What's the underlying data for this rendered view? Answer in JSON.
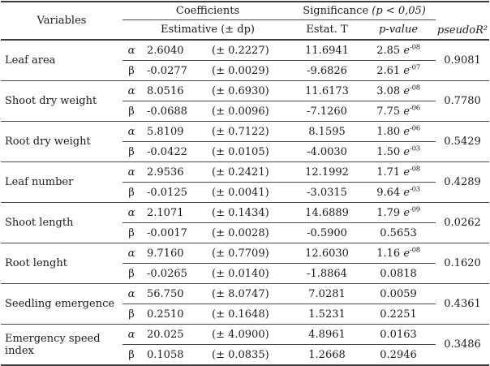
{
  "table": {
    "header": {
      "variables": "Variables",
      "coefficients": "Coefficients",
      "estimative": "Estimative (± dp)",
      "significance": "Significance",
      "significance_cond": "(p < 0,05)",
      "estat_t": "Estat. T",
      "p_value": "p-value",
      "pseudo_r2": "pseudoR²"
    },
    "symbols": {
      "alpha": "α",
      "beta": "β",
      "e": "e"
    },
    "rows": [
      {
        "variable": "Leaf area",
        "r2": "0.9081",
        "alpha": {
          "est": "2.6040",
          "dp": "(± 0.2227)",
          "t": "11.6941",
          "p": "2.85",
          "p_exp": "-08"
        },
        "beta": {
          "est": "-0.0277",
          "dp": "(± 0.0029)",
          "t": "-9.6826",
          "p": "2.61",
          "p_exp": "-07"
        }
      },
      {
        "variable": "Shoot dry weight",
        "r2": "0.7780",
        "alpha": {
          "est": "8.0516",
          "dp": "(± 0.6930)",
          "t": "11.6173",
          "p": "3.08",
          "p_exp": "-08"
        },
        "beta": {
          "est": "-0.0688",
          "dp": "(± 0.0096)",
          "t": "-7.1260",
          "p": "7.75",
          "p_exp": "-06"
        }
      },
      {
        "variable": "Root dry weight",
        "r2": "0.5429",
        "alpha": {
          "est": "5.8109",
          "dp": "(± 0.7122)",
          "t": "8.1595",
          "p": "1.80",
          "p_exp": "-06"
        },
        "beta": {
          "est": "-0.0422",
          "dp": "(± 0.0105)",
          "t": "-4.0030",
          "p": "1.50",
          "p_exp": "-03"
        }
      },
      {
        "variable": "Leaf number",
        "r2": "0.4289",
        "alpha": {
          "est": "2.9536",
          "dp": "(± 0.2421)",
          "t": "12.1992",
          "p": "1.71",
          "p_exp": "-08"
        },
        "beta": {
          "est": "-0.0125",
          "dp": "(± 0.0041)",
          "t": "-3.0315",
          "p": "9.64",
          "p_exp": "-03"
        }
      },
      {
        "variable": "Shoot length",
        "r2": "0.0262",
        "alpha": {
          "est": "2.1071",
          "dp": "(± 0.1434)",
          "t": "14.6889",
          "p": "1.79",
          "p_exp": "-09"
        },
        "beta": {
          "est": "-0.0017",
          "dp": "(± 0.0028)",
          "t": "-0.5900",
          "p": "0.5653",
          "p_exp": ""
        }
      },
      {
        "variable": "Root lenght",
        "r2": "0.1620",
        "alpha": {
          "est": "9.7160",
          "dp": "(± 0.7709)",
          "t": "12.6030",
          "p": "1.16",
          "p_exp": "-08"
        },
        "beta": {
          "est": "-0.0265",
          "dp": "(± 0.0140)",
          "t": "-1.8864",
          "p": "0.0818",
          "p_exp": ""
        }
      },
      {
        "variable": "Seedling emergence",
        "r2": "0.4361",
        "alpha": {
          "est": "56.750",
          "dp": "(± 8.0747)",
          "t": "7.0281",
          "p": "0.0059",
          "p_exp": ""
        },
        "beta": {
          "est": "0.2510",
          "dp": "(± 0.1648)",
          "t": "1.5231",
          "p": "0.2251",
          "p_exp": ""
        }
      },
      {
        "variable": "Emergency speed index",
        "r2": "0.3486",
        "alpha": {
          "est": "20.025",
          "dp": "(± 4.0900)",
          "t": "4.8961",
          "p": "0.0163",
          "p_exp": ""
        },
        "beta": {
          "est": "0.1058",
          "dp": "(± 0.0835)",
          "t": "1.2668",
          "p": "0.2946",
          "p_exp": ""
        }
      }
    ]
  },
  "colors": {
    "text": "#1b1b1b",
    "rule": "#3d3d3d",
    "background": "#ffffff"
  }
}
